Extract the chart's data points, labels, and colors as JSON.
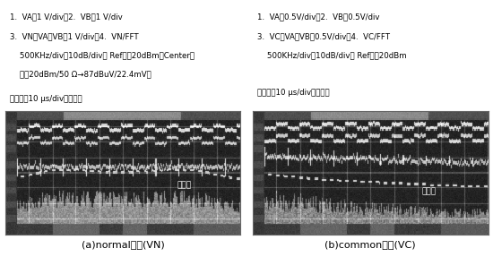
{
  "left_panel_caption": "(a)normal成份(VN)",
  "right_panel_caption": "(b)common成份(VC)",
  "left_text_line1": "1.  VA：1 V/div，2.  VB：1 V/div",
  "left_text_line2": "3.  VN＝VA－VB：1 V/div，4.  VN/FFT",
  "left_text_line3": "    500KHz/div，10dB/div， Ref：－20dBm（Center）",
  "left_text_line4": "    （－20dBm/50 Ω→87dBuV/22.4mV）",
  "left_text_line5": "時間軸：10 μs/div（共通）",
  "right_text_line1": "1.  VA：0.5V/div，2.  VB：0.5V/div",
  "right_text_line2": "3.  VC＝VA＋VB：0.5V/div，4.  VC/FFT",
  "right_text_line3": "    500KHz/div，10dB/div， Ref：－20dBm",
  "right_text_line4": "時間軸：10 μs/div（共通）",
  "envelope_left": "包絡線",
  "envelope_right": "包絡線",
  "bg_color": "white",
  "osc_dark": 30,
  "osc_mid": 100,
  "osc_light": 180,
  "text_fontsize": 6.2,
  "caption_fontsize": 8.0
}
